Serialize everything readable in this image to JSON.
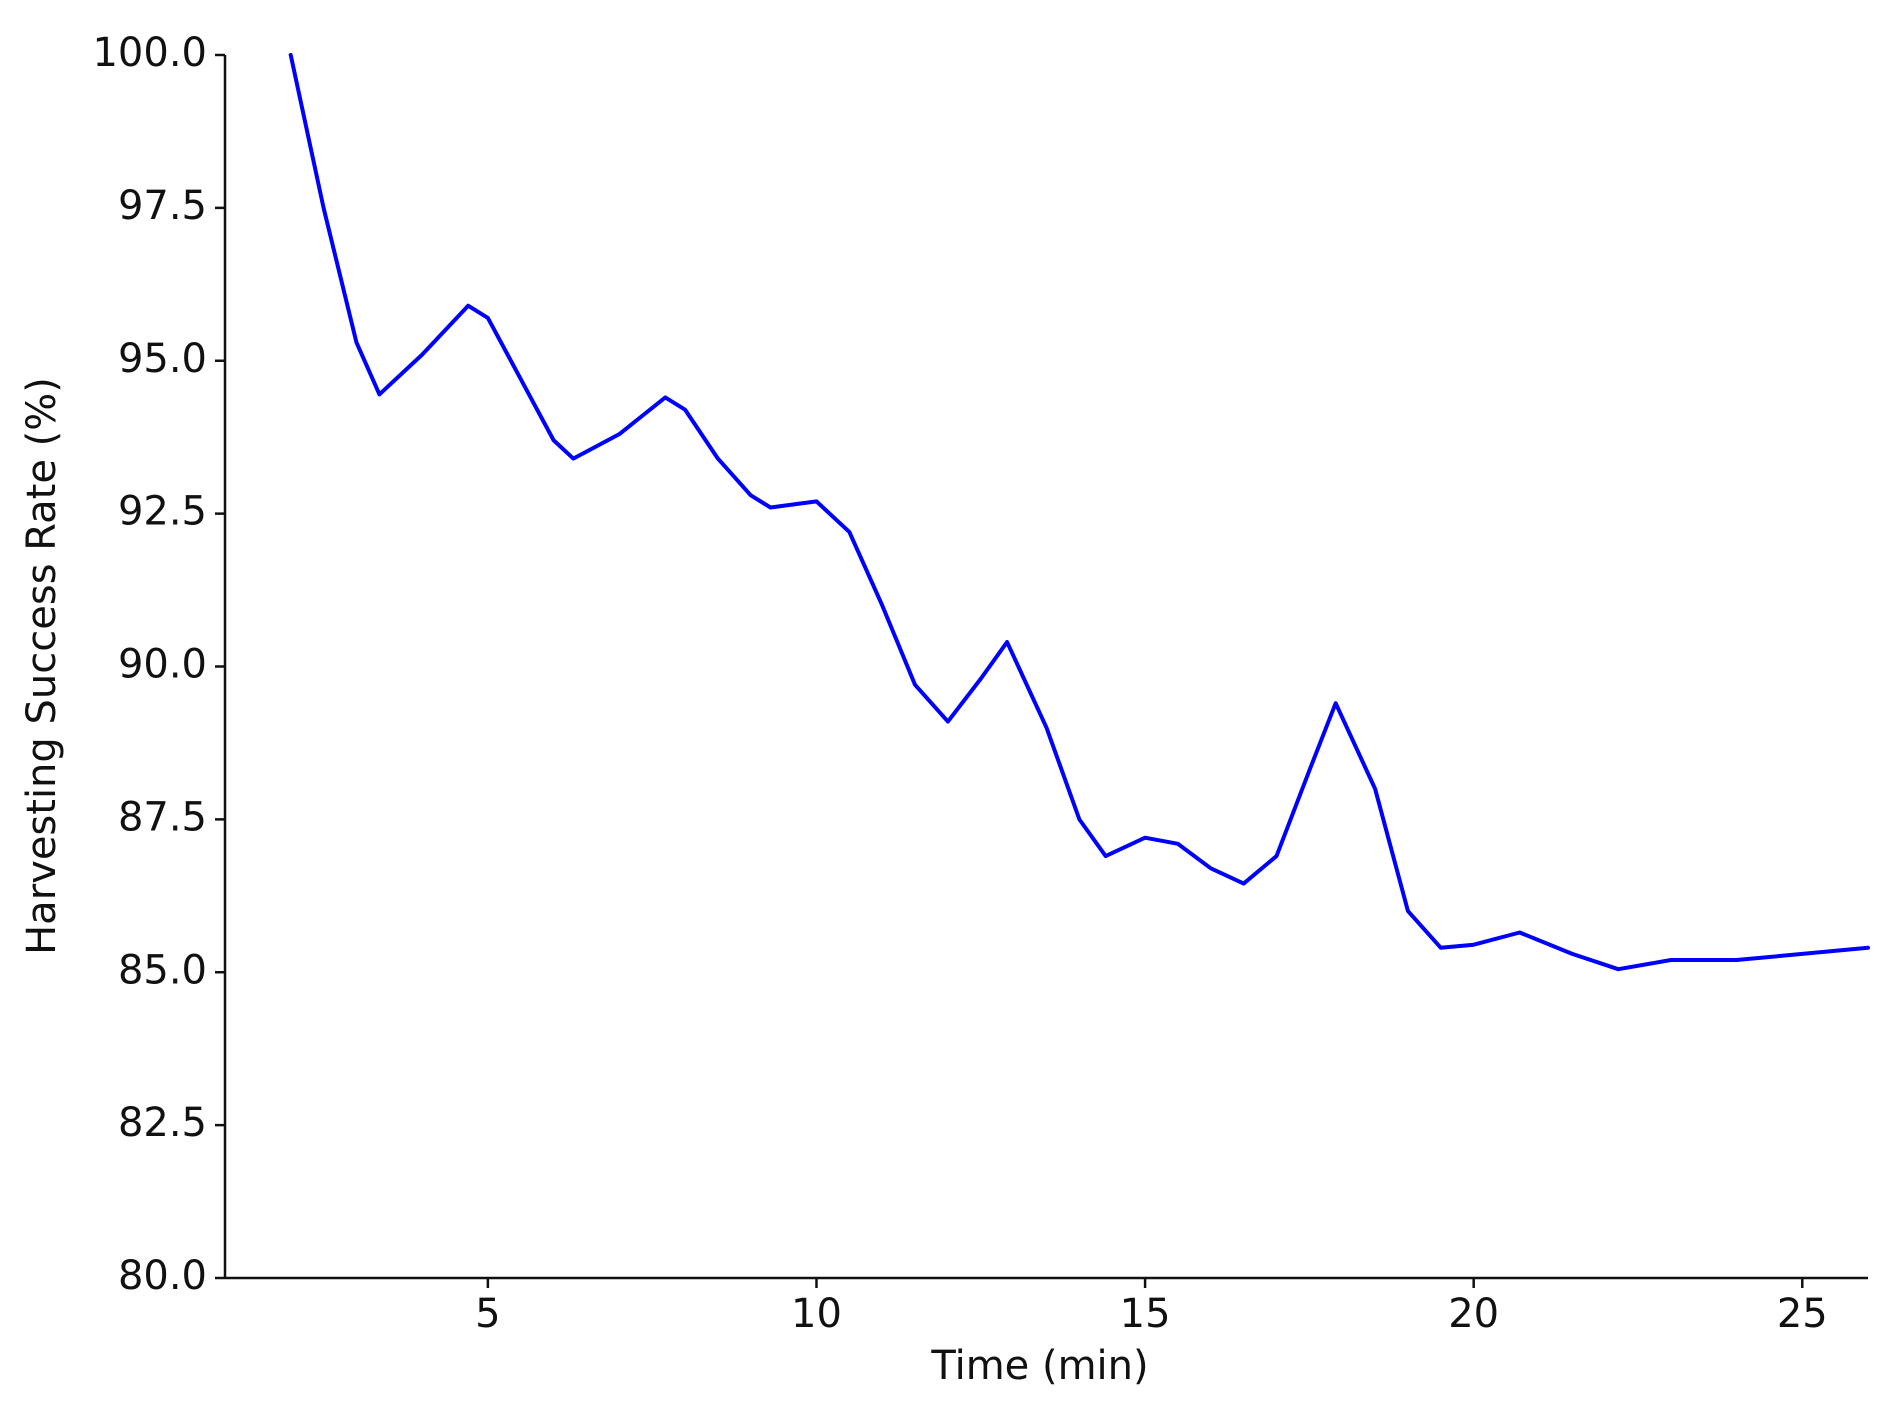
{
  "chart_data": {
    "type": "line",
    "x_label": "Time (min)",
    "y_label": "Harvesting Success Rate (%)",
    "x": [
      2,
      2.5,
      3,
      3.35,
      4,
      4.7,
      5,
      5.5,
      6,
      6.3,
      7,
      7.7,
      8,
      8.5,
      9,
      9.3,
      10,
      10.5,
      11,
      11.5,
      12,
      12.5,
      12.9,
      13.5,
      14,
      14.4,
      15,
      15.5,
      16,
      16.5,
      17,
      17.5,
      17.9,
      18.5,
      19,
      19.5,
      20,
      20.7,
      21.5,
      22.2,
      23,
      24,
      25,
      26
    ],
    "series": [
      {
        "name": "Harvesting Success Rate",
        "color": "#0000ff",
        "values": [
          100.0,
          97.5,
          95.3,
          94.45,
          95.1,
          95.9,
          95.7,
          94.7,
          93.7,
          93.4,
          93.8,
          94.4,
          94.2,
          93.4,
          92.8,
          92.6,
          92.7,
          92.2,
          91.0,
          89.7,
          89.1,
          89.8,
          90.4,
          89.0,
          87.5,
          86.9,
          87.2,
          87.1,
          86.7,
          86.45,
          86.9,
          88.3,
          89.4,
          88.0,
          86.0,
          85.4,
          85.45,
          85.65,
          85.3,
          85.05,
          85.2,
          85.2,
          85.3,
          85.4
        ]
      }
    ],
    "xlim": [
      1,
      26
    ],
    "xticks": [
      5,
      10,
      15,
      20,
      25
    ],
    "ylim": [
      80,
      100
    ],
    "yticks": [
      {
        "value": 80,
        "label": "80.0"
      },
      {
        "value": 82.5,
        "label": "82.5"
      },
      {
        "value": 85,
        "label": "85.0"
      },
      {
        "value": 87.5,
        "label": "87.5"
      },
      {
        "value": 90,
        "label": "90.0"
      },
      {
        "value": 92.5,
        "label": "92.5"
      },
      {
        "value": 95,
        "label": "95.0"
      },
      {
        "value": 97.5,
        "label": "97.5"
      },
      {
        "value": 100,
        "label": "100.0"
      }
    ],
    "grid": false
  }
}
